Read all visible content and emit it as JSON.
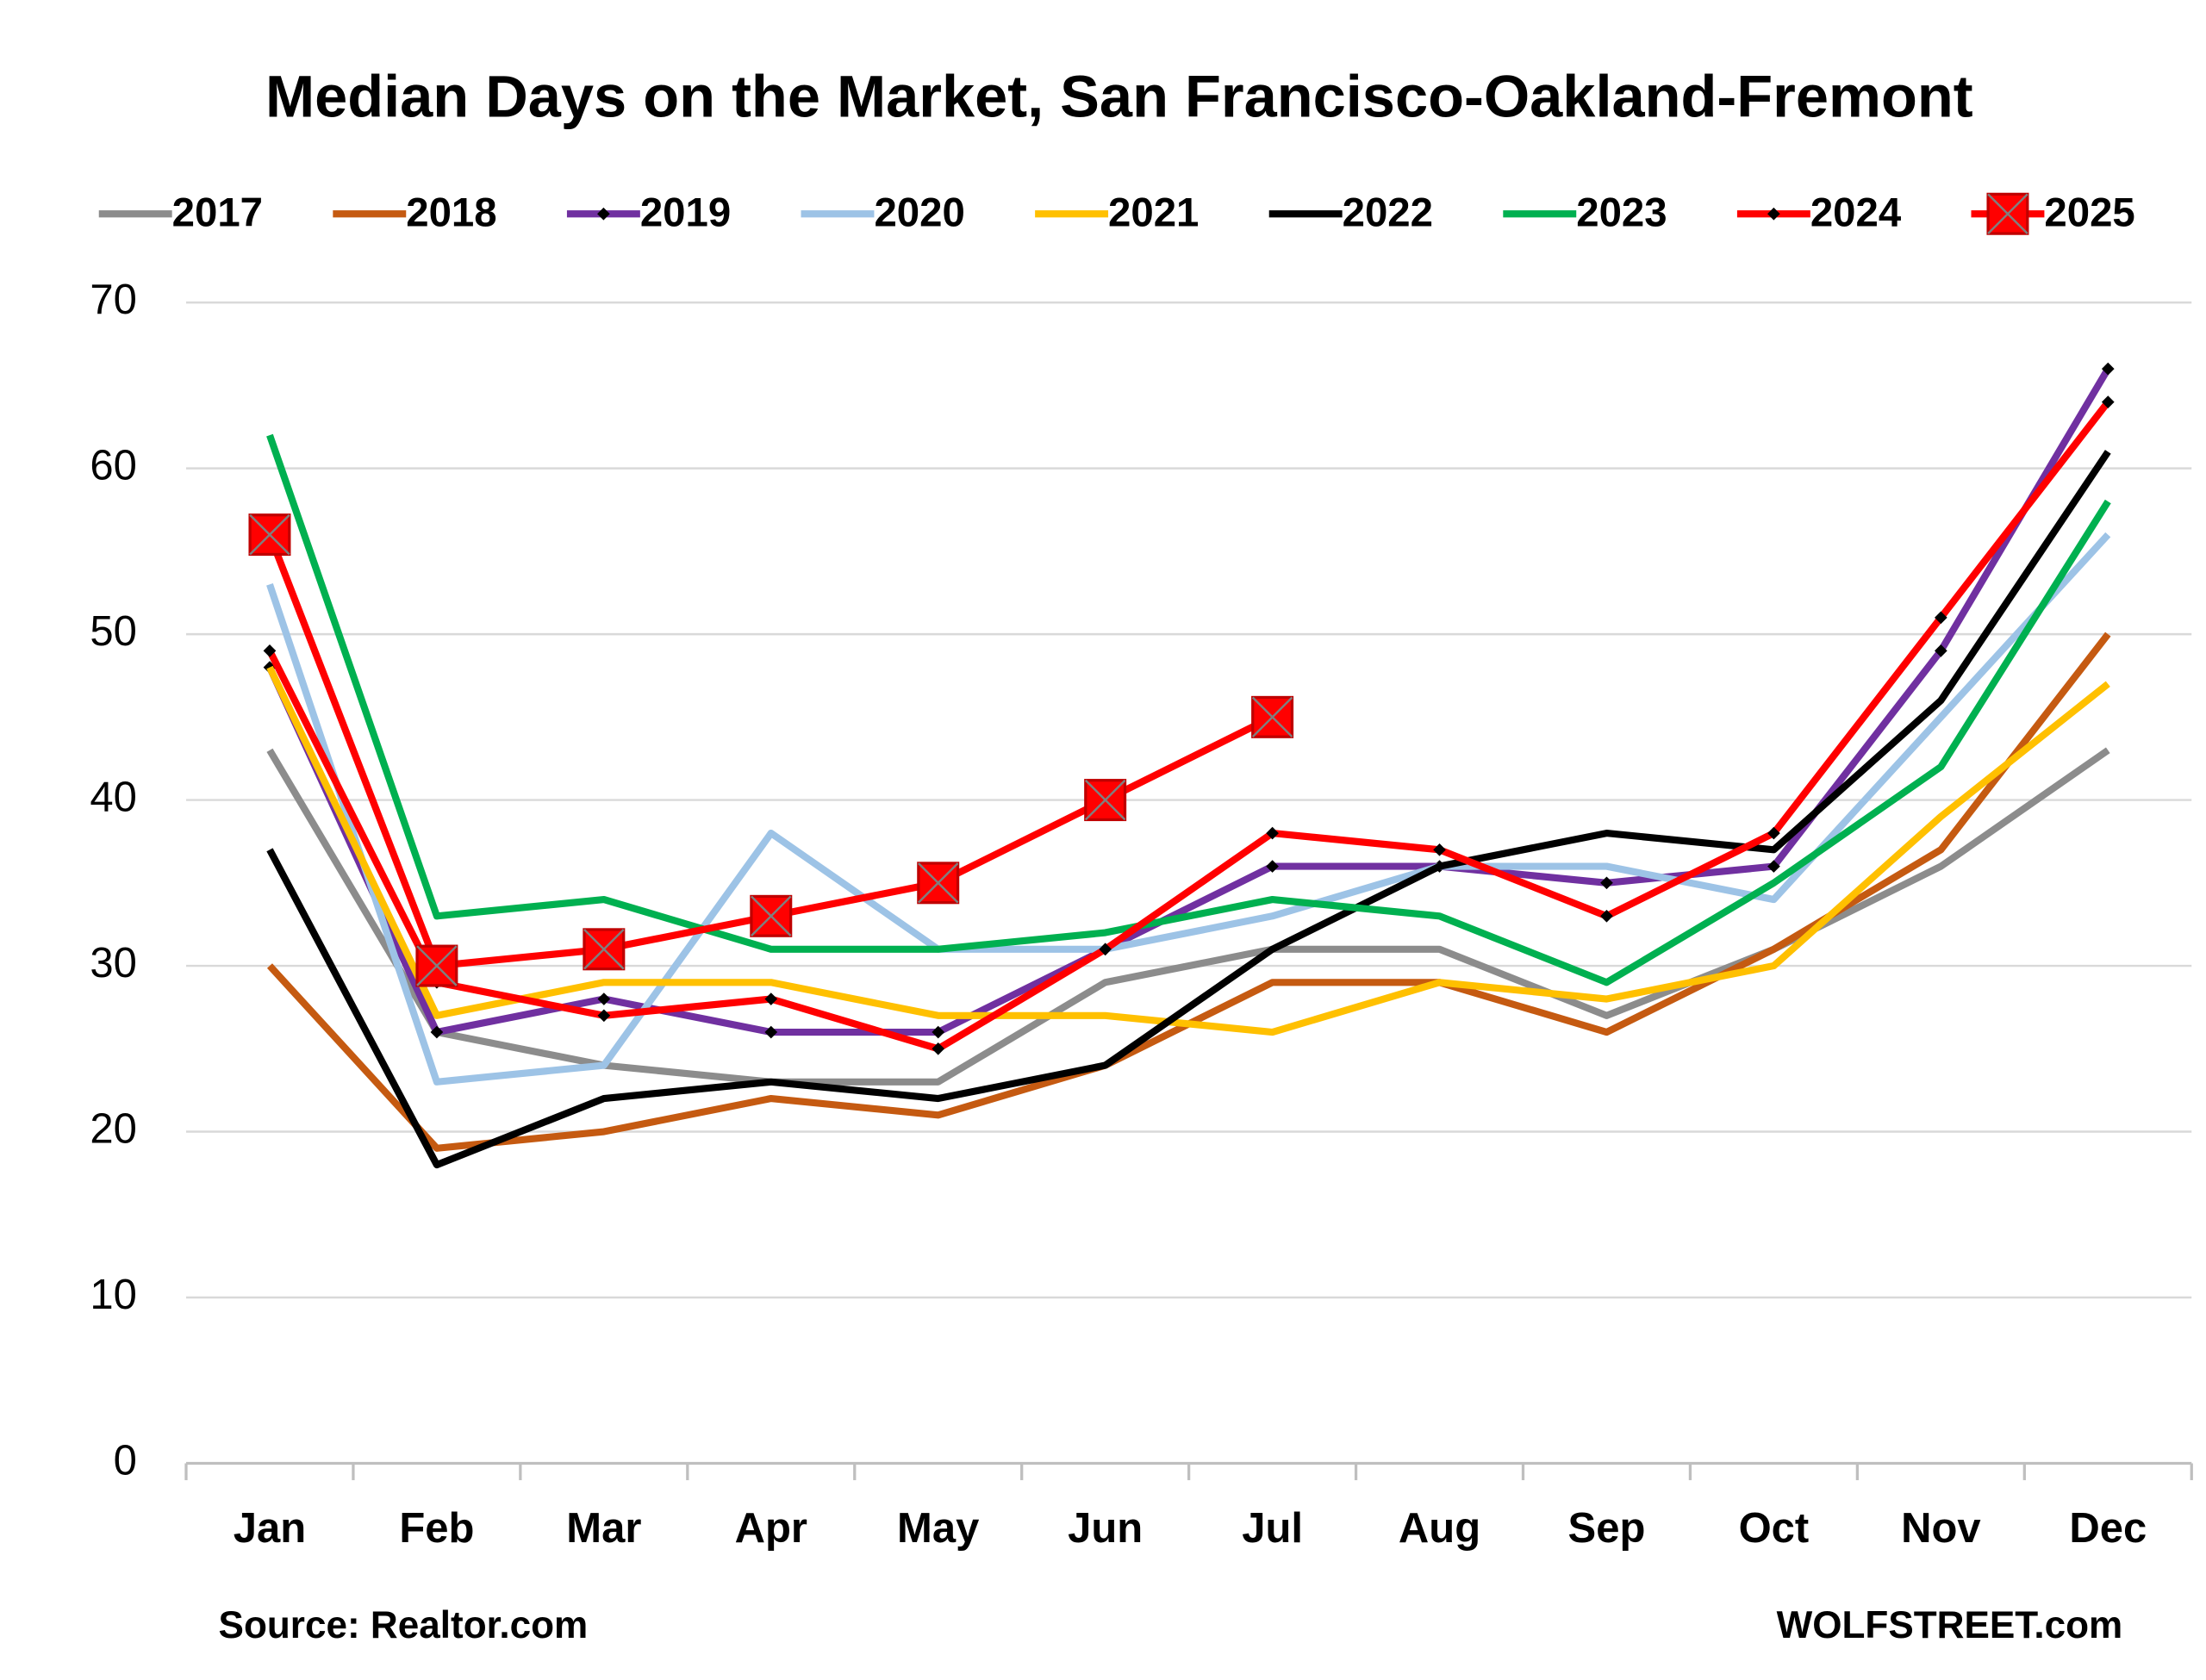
{
  "chart_data": {
    "type": "line",
    "title": "Median Days on the Market, San Francisco-Oakland-Fremont",
    "source": "Source: Realtor.com",
    "credit": "WOLFSTREET.com",
    "categories": [
      "Jan",
      "Feb",
      "Mar",
      "Apr",
      "May",
      "Jun",
      "Jul",
      "Aug",
      "Sep",
      "Oct",
      "Nov",
      "Dec"
    ],
    "series": [
      {
        "name": "2017",
        "color": "#8c8c8c",
        "values": [
          43,
          26,
          24,
          23,
          23,
          29,
          31,
          31,
          27,
          31,
          36,
          43
        ]
      },
      {
        "name": "2018",
        "color": "#c55a11",
        "values": [
          30,
          19,
          20,
          22,
          21,
          24,
          29,
          29,
          26,
          31,
          37,
          50
        ]
      },
      {
        "name": "2019",
        "color": "#7030a0",
        "marker": "diamond",
        "values": [
          48,
          26,
          28,
          26,
          26,
          31,
          36,
          36,
          35,
          36,
          49,
          66
        ]
      },
      {
        "name": "2020",
        "color": "#9dc3e6",
        "values": [
          53,
          23,
          24,
          38,
          31,
          31,
          33,
          36,
          36,
          34,
          45,
          56
        ]
      },
      {
        "name": "2021",
        "color": "#ffc000",
        "values": [
          48,
          27,
          29,
          29,
          27,
          27,
          26,
          29,
          28,
          30,
          39,
          47
        ]
      },
      {
        "name": "2022",
        "color": "#000000",
        "values": [
          37,
          18,
          22,
          23,
          22,
          24,
          31,
          36,
          38,
          37,
          46,
          61
        ]
      },
      {
        "name": "2023",
        "color": "#00b050",
        "values": [
          62,
          33,
          34,
          31,
          31,
          32,
          34,
          33,
          29,
          35,
          42,
          58
        ]
      },
      {
        "name": "2024",
        "color": "#ff0000",
        "marker": "diamond",
        "values": [
          49,
          29,
          27,
          28,
          25,
          31,
          38,
          37,
          33,
          38,
          51,
          64
        ]
      },
      {
        "name": "2025",
        "color": "#ff0000",
        "marker": "square",
        "values": [
          56,
          30,
          31,
          33,
          35,
          40,
          45,
          null,
          null,
          null,
          null,
          null
        ]
      }
    ],
    "ylim": [
      0,
      70
    ],
    "yticks": [
      0,
      10,
      20,
      30,
      40,
      50,
      60,
      70
    ],
    "grid": true,
    "legend": "top"
  }
}
